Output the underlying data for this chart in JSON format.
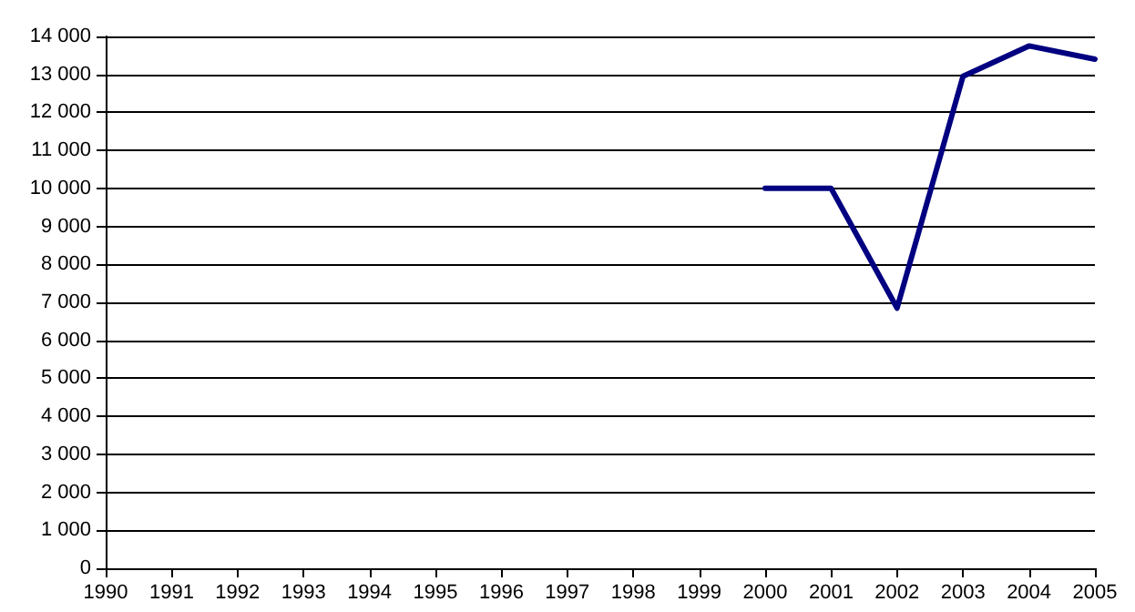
{
  "chart_data": {
    "type": "line",
    "x": [
      2000,
      2001,
      2002,
      2003,
      2004,
      2005
    ],
    "series": [
      {
        "color": "#000080",
        "values": [
          10000,
          10000,
          6850,
          12950,
          13750,
          13400
        ]
      }
    ],
    "xlim": [
      1990,
      2005
    ],
    "xticks": [
      1990,
      1991,
      1992,
      1993,
      1994,
      1995,
      1996,
      1997,
      1998,
      1999,
      2000,
      2001,
      2002,
      2003,
      2004,
      2005
    ],
    "ylim": [
      0,
      14000
    ],
    "yticks": [
      {
        "value": 0,
        "label": "0"
      },
      {
        "value": 1000,
        "label": "1 000"
      },
      {
        "value": 2000,
        "label": "2 000"
      },
      {
        "value": 3000,
        "label": "3 000"
      },
      {
        "value": 4000,
        "label": "4 000"
      },
      {
        "value": 5000,
        "label": "5 000"
      },
      {
        "value": 6000,
        "label": "6 000"
      },
      {
        "value": 7000,
        "label": "7 000"
      },
      {
        "value": 8000,
        "label": "8 000"
      },
      {
        "value": 9000,
        "label": "9 000"
      },
      {
        "value": 10000,
        "label": "10 000"
      },
      {
        "value": 11000,
        "label": "11 000"
      },
      {
        "value": 12000,
        "label": "12 000"
      },
      {
        "value": 13000,
        "label": "13 000"
      },
      {
        "value": 14000,
        "label": "14 000"
      }
    ],
    "grid": "y",
    "marker": "none",
    "line_style": "solid"
  }
}
